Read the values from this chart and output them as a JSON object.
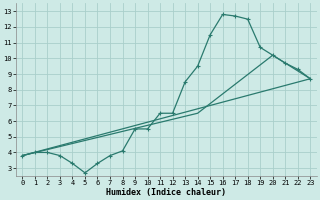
{
  "xlabel": "Humidex (Indice chaleur)",
  "background_color": "#ceeae6",
  "grid_color": "#aacfcb",
  "line_color": "#2a7a6e",
  "xlim": [
    -0.5,
    23.5
  ],
  "ylim": [
    2.5,
    13.5
  ],
  "xticks": [
    0,
    1,
    2,
    3,
    4,
    5,
    6,
    7,
    8,
    9,
    10,
    11,
    12,
    13,
    14,
    15,
    16,
    17,
    18,
    19,
    20,
    21,
    22,
    23
  ],
  "yticks": [
    3,
    4,
    5,
    6,
    7,
    8,
    9,
    10,
    11,
    12,
    13
  ],
  "line1_x": [
    0,
    1,
    2,
    3,
    4,
    5,
    6,
    7,
    8,
    9,
    10,
    11,
    12,
    13,
    14,
    15,
    16,
    17,
    18,
    19,
    20,
    21,
    22,
    23
  ],
  "line1_y": [
    3.8,
    4.0,
    4.0,
    3.8,
    3.3,
    2.7,
    3.3,
    3.8,
    4.1,
    5.5,
    5.5,
    6.5,
    6.5,
    8.5,
    9.5,
    11.5,
    12.8,
    12.7,
    12.5,
    10.7,
    10.2,
    9.7,
    9.3,
    8.7
  ],
  "line2_x": [
    0,
    23
  ],
  "line2_y": [
    3.8,
    8.7
  ],
  "line3_x": [
    0,
    14,
    20,
    23
  ],
  "line3_y": [
    3.8,
    6.5,
    10.2,
    8.7
  ]
}
